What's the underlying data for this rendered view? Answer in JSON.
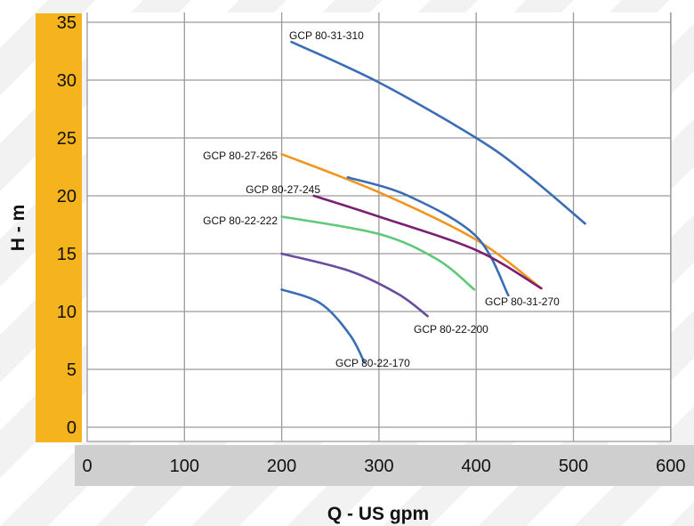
{
  "chart_data": {
    "type": "line",
    "title": "",
    "xlabel": "Q - US gpm",
    "ylabel": "H - m",
    "xlim": [
      0,
      600
    ],
    "ylim": [
      0,
      35
    ],
    "x_ticks": [
      0,
      100,
      200,
      300,
      400,
      500,
      600
    ],
    "y_ticks": [
      0,
      5,
      10,
      15,
      20,
      25,
      30,
      35
    ],
    "grid": true,
    "colors": {
      "y_axis_band": "#f5b31d",
      "x_axis_band": "#cfcfcf",
      "grid": "#9a9a9a"
    },
    "series": [
      {
        "name": "GCP 80-31-310",
        "color": "#3a6db5",
        "points": [
          [
            210,
            33.3
          ],
          [
            300,
            29.8
          ],
          [
            400,
            25.0
          ],
          [
            450,
            22.0
          ],
          [
            512,
            17.6
          ]
        ]
      },
      {
        "name": "GCP 80-27-265",
        "color": "#f0961e",
        "points": [
          [
            200,
            23.6
          ],
          [
            300,
            20.3
          ],
          [
            400,
            16.2
          ],
          [
            467,
            12.0
          ]
        ]
      },
      {
        "name": "GCP 80-31-270",
        "color": "#3a6db5",
        "points": [
          [
            268,
            21.6
          ],
          [
            330,
            20.0
          ],
          [
            400,
            16.5
          ],
          [
            433,
            11.4
          ]
        ]
      },
      {
        "name": "GCP 80-27-245",
        "color": "#7b1f73",
        "points": [
          [
            233,
            20.0
          ],
          [
            300,
            18.2
          ],
          [
            400,
            15.3
          ],
          [
            467,
            12.0
          ]
        ]
      },
      {
        "name": "GCP 80-22-222",
        "color": "#5ec978",
        "points": [
          [
            200,
            18.2
          ],
          [
            300,
            16.7
          ],
          [
            360,
            14.5
          ],
          [
            398,
            11.9
          ]
        ]
      },
      {
        "name": "GCP 80-22-200",
        "color": "#6a4ba0",
        "points": [
          [
            200,
            15.0
          ],
          [
            270,
            13.5
          ],
          [
            320,
            11.5
          ],
          [
            350,
            9.6
          ]
        ]
      },
      {
        "name": "GCP 80-22-170",
        "color": "#3a6db5",
        "points": [
          [
            200,
            11.9
          ],
          [
            240,
            10.7
          ],
          [
            270,
            8.0
          ],
          [
            285,
            5.6
          ]
        ]
      }
    ]
  }
}
